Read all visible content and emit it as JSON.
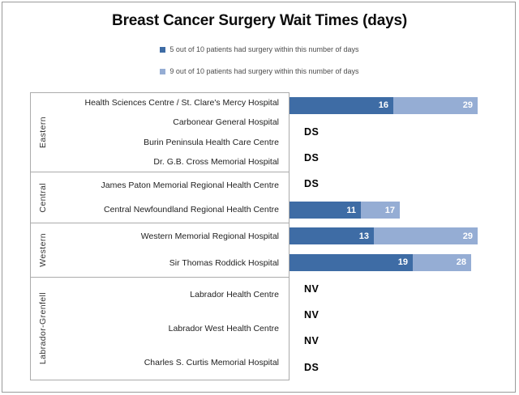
{
  "title": "Breast Cancer Surgery Wait Times (days)",
  "colors": {
    "series_50th": "#3e6ca5",
    "series_90th": "#95add4",
    "box_border": "#ababab",
    "frame_border": "#9a9a9a",
    "bar_value_text": "#ffffff",
    "note_text": "#000000"
  },
  "legend": [
    {
      "label": "5 out of 10 patients had surgery within this number of days",
      "color": "#3e6ca5"
    },
    {
      "label": "9 out of 10 patients had surgery within this number of days",
      "color": "#95add4"
    }
  ],
  "chart_data": {
    "type": "bar",
    "orientation": "horizontal",
    "title": "Breast Cancer Surgery Wait Times (days)",
    "unit": "days",
    "xlim": [
      0,
      35
    ],
    "grid": false,
    "legend_position": "top",
    "series": [
      {
        "name": "5 out of 10 patients had surgery within this number of days"
      },
      {
        "name": "9 out of 10 patients had surgery within this number of days"
      }
    ],
    "groups": [
      {
        "region": "Eastern",
        "rows": [
          {
            "hospital": "Health Sciences Centre / St. Clare's Mercy Hospital",
            "p50": 16,
            "p90": 29,
            "note": null
          },
          {
            "hospital": "Carbonear General Hospital",
            "p50": null,
            "p90": null,
            "note": "DS"
          },
          {
            "hospital": "Burin Peninsula Health Care Centre",
            "p50": null,
            "p90": null,
            "note": "DS"
          },
          {
            "hospital": "Dr. G.B. Cross Memorial Hospital",
            "p50": null,
            "p90": null,
            "note": "DS"
          }
        ]
      },
      {
        "region": "Central",
        "rows": [
          {
            "hospital": "James Paton Memorial Regional Health Centre",
            "p50": 11,
            "p90": 17,
            "note": null
          },
          {
            "hospital": "Central Newfoundland Regional Health Centre",
            "p50": 13,
            "p90": 29,
            "note": null
          }
        ]
      },
      {
        "region": "Western",
        "rows": [
          {
            "hospital": "Western Memorial Regional Hospital",
            "p50": 19,
            "p90": 28,
            "note": null
          },
          {
            "hospital": "Sir Thomas Roddick Hospital",
            "p50": null,
            "p90": null,
            "note": "NV"
          }
        ]
      },
      {
        "region": "Labrador-Grenfell",
        "rows": [
          {
            "hospital": "Labrador Health Centre",
            "p50": null,
            "p90": null,
            "note": "NV"
          },
          {
            "hospital": "Labrador West Health Centre",
            "p50": null,
            "p90": null,
            "note": "NV"
          },
          {
            "hospital": "Charles S. Curtis Memorial Hospital",
            "p50": null,
            "p90": null,
            "note": "DS"
          }
        ]
      }
    ]
  }
}
